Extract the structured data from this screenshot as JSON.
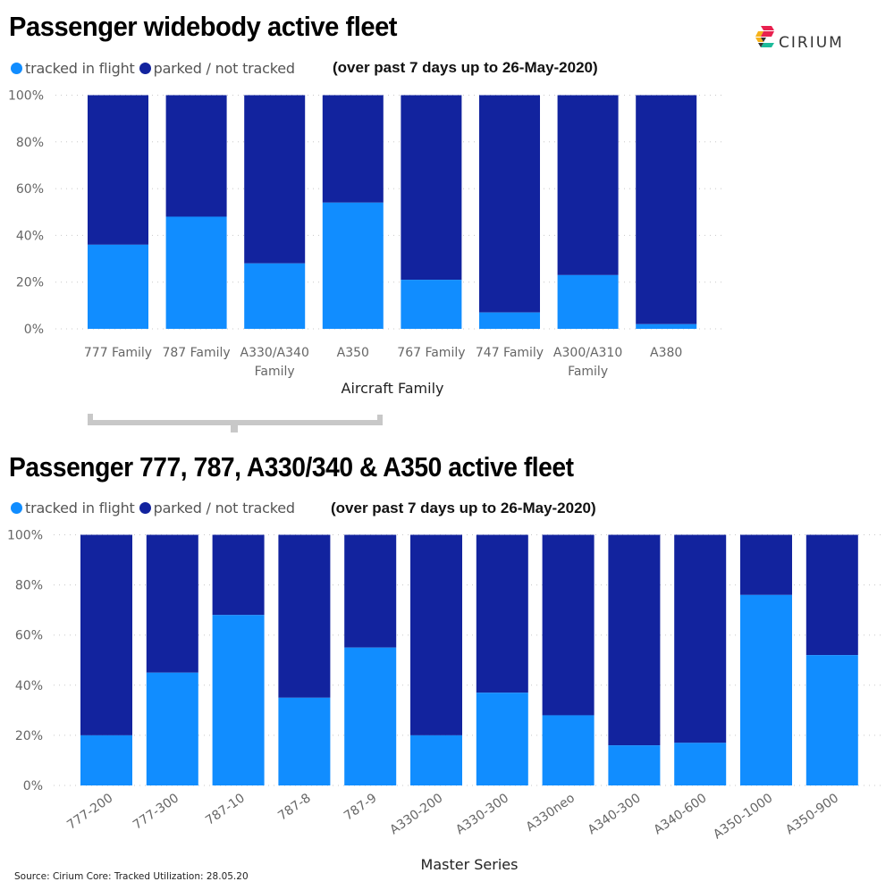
{
  "colors": {
    "tracked": "#118DFF",
    "parked": "#12239E",
    "grid": "#c8c8c8",
    "bracket": "#c8c8c8"
  },
  "logo": {
    "text": "CIRIUM",
    "icon": "cirium-logo-icon"
  },
  "legend": {
    "tracked_label": "tracked in flight",
    "parked_label": "parked / not tracked"
  },
  "source": "Source: Cirium Core: Tracked Utilization: 28.05.20",
  "chart_data": [
    {
      "type": "bar",
      "stacked": "100%",
      "title": "Passenger widebody active fleet",
      "subtitle": "(over past 7 days up to 26-May-2020)",
      "xlabel": "Aircraft Family",
      "ylabel": "",
      "ylim": [
        0,
        100
      ],
      "yticks": [
        "0%",
        "20%",
        "40%",
        "60%",
        "80%",
        "100%"
      ],
      "grid": true,
      "legend_position": "top-left",
      "categories": [
        [
          "777 Family"
        ],
        [
          "787 Family"
        ],
        [
          "A330/A340",
          "Family"
        ],
        [
          "A350"
        ],
        [
          "767 Family"
        ],
        [
          "747 Family"
        ],
        [
          "A300/A310",
          "Family"
        ],
        [
          "A380"
        ]
      ],
      "series": [
        {
          "name": "tracked in flight",
          "values": [
            36,
            48,
            28,
            54,
            21,
            7,
            23,
            2
          ]
        },
        {
          "name": "parked / not tracked",
          "values": [
            64,
            52,
            72,
            46,
            79,
            93,
            77,
            98
          ]
        }
      ]
    },
    {
      "type": "bar",
      "stacked": "100%",
      "title": "Passenger 777, 787, A330/340 & A350 active fleet",
      "subtitle": "(over past 7 days up to 26-May-2020)",
      "xlabel": "Master Series",
      "ylabel": "",
      "ylim": [
        0,
        100
      ],
      "yticks": [
        "0%",
        "20%",
        "40%",
        "60%",
        "80%",
        "100%"
      ],
      "grid": true,
      "legend_position": "top-left",
      "categories": [
        "777-200",
        "777-300",
        "787-10",
        "787-8",
        "787-9",
        "A330-200",
        "A330-300",
        "A330neo",
        "A340-300",
        "A340-600",
        "A350-1000",
        "A350-900"
      ],
      "series": [
        {
          "name": "tracked in flight",
          "values": [
            20,
            45,
            68,
            35,
            55,
            20,
            37,
            28,
            16,
            17,
            76,
            52
          ]
        },
        {
          "name": "parked / not tracked",
          "values": [
            80,
            55,
            32,
            65,
            45,
            80,
            63,
            72,
            84,
            83,
            24,
            48
          ]
        }
      ]
    }
  ]
}
